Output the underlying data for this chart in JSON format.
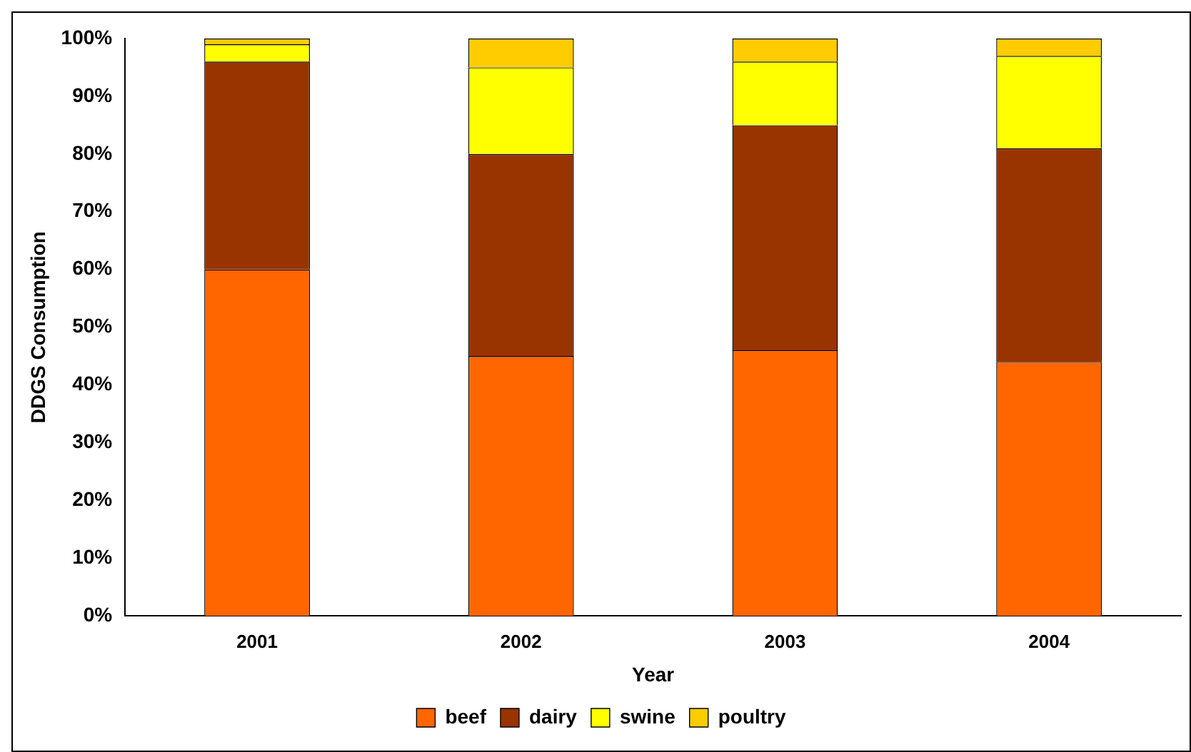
{
  "chart_data": {
    "type": "bar",
    "stacked": true,
    "xlabel": "Year",
    "ylabel": "DDGS Consumption",
    "categories": [
      "2001",
      "2002",
      "2003",
      "2004"
    ],
    "series": [
      {
        "name": "beef",
        "color": "#ff6600",
        "values": [
          60,
          45,
          46,
          44
        ]
      },
      {
        "name": "dairy",
        "color": "#993300",
        "values": [
          36,
          35,
          39,
          37
        ]
      },
      {
        "name": "swine",
        "color": "#ffff00",
        "values": [
          3,
          15,
          11,
          16
        ]
      },
      {
        "name": "poultry",
        "color": "#ffcc00",
        "values": [
          1,
          5,
          4,
          3
        ]
      }
    ],
    "ylim": [
      0,
      100
    ],
    "yticks": [
      {
        "value": 0,
        "label": "0%"
      },
      {
        "value": 10,
        "label": "10%"
      },
      {
        "value": 20,
        "label": "20%"
      },
      {
        "value": 30,
        "label": "30%"
      },
      {
        "value": 40,
        "label": "40%"
      },
      {
        "value": 50,
        "label": "50%"
      },
      {
        "value": 60,
        "label": "60%"
      },
      {
        "value": 70,
        "label": "70%"
      },
      {
        "value": 80,
        "label": "80%"
      },
      {
        "value": 90,
        "label": "90%"
      },
      {
        "value": 100,
        "label": "100%"
      }
    ],
    "grid": false,
    "legend": "bottom"
  }
}
